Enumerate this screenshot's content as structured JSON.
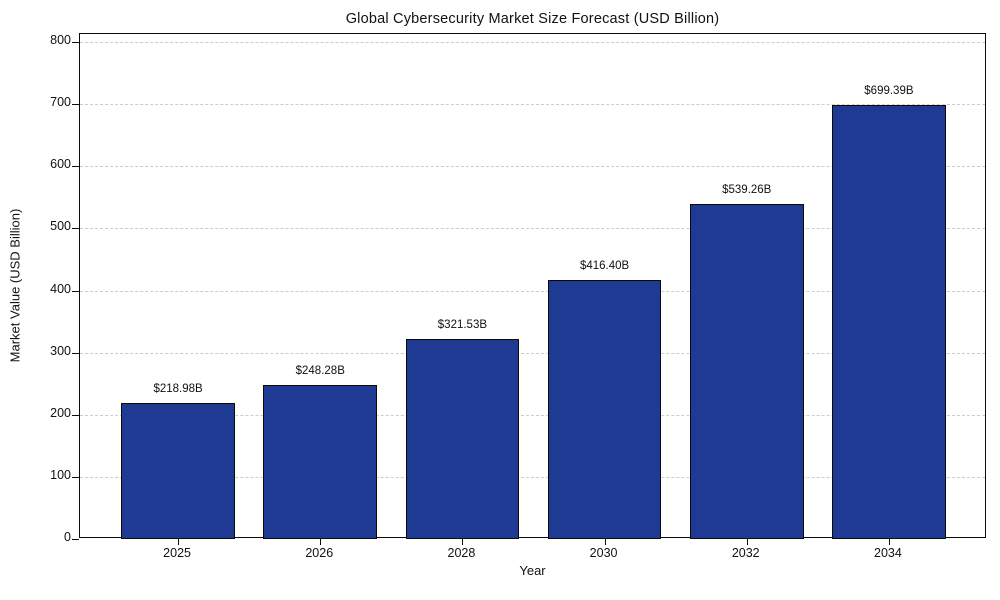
{
  "chart_data": {
    "type": "bar",
    "title": "Global Cybersecurity Market Size Forecast (USD Billion)",
    "xlabel": "Year",
    "ylabel": "Market Value (USD Billion)",
    "categories": [
      "2025",
      "2026",
      "2028",
      "2030",
      "2032",
      "2034"
    ],
    "values": [
      218.98,
      248.28,
      321.53,
      416.4,
      539.26,
      699.39
    ],
    "bar_labels": [
      "$218.98B",
      "$248.28B",
      "$321.53B",
      "$416.40B",
      "$539.26B",
      "$699.39B"
    ],
    "yticks": [
      0,
      100,
      200,
      300,
      400,
      500,
      600,
      700,
      800
    ],
    "ylim": [
      0,
      813
    ],
    "grid": "horizontal-dashed",
    "legend": "none",
    "colors": {
      "bar_fill": "#1f3a93",
      "bar_edge": "#0a0a0a",
      "grid_line": "#cccccc",
      "text": "#111111",
      "background": "#ffffff"
    }
  }
}
